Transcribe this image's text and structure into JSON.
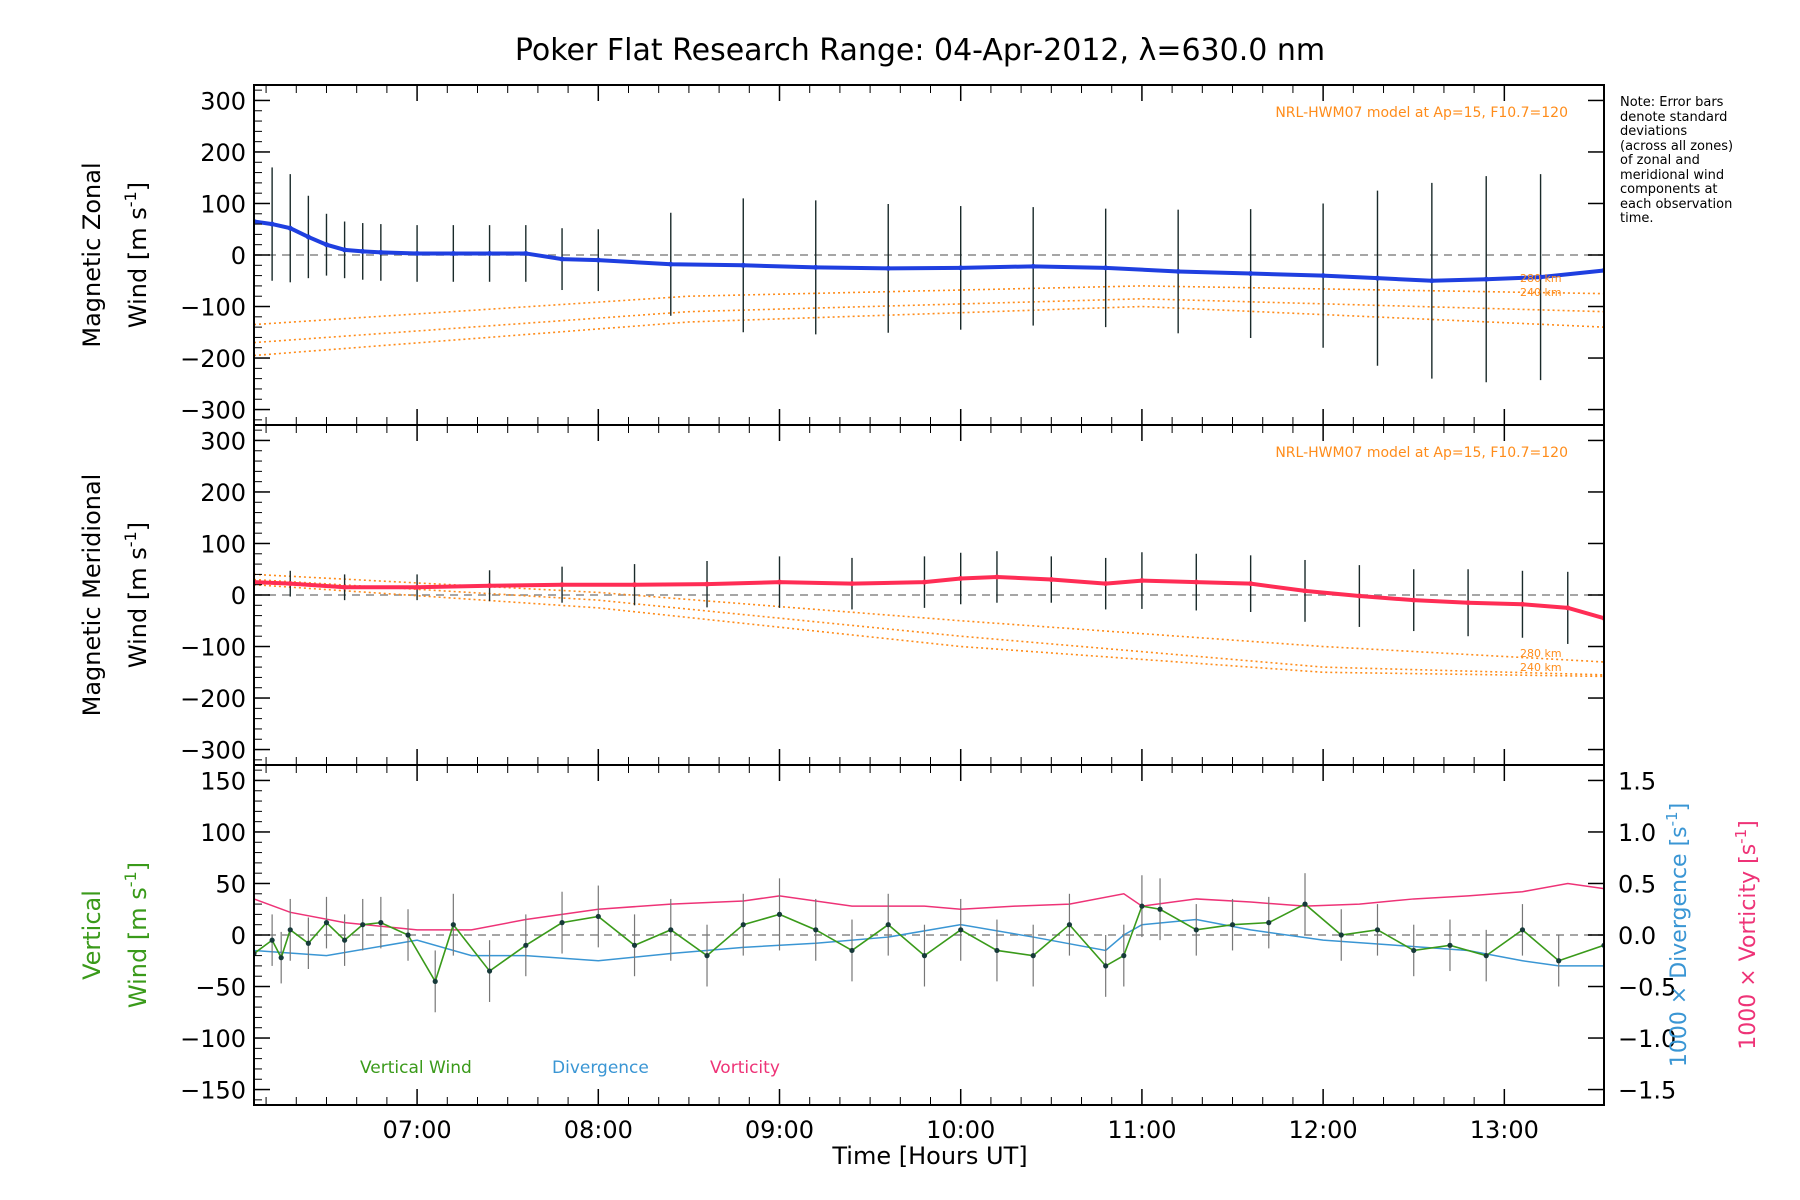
{
  "figure": {
    "title": "Poker Flat Research Range: 04-Apr-2012, λ=630.0 nm",
    "x_label": "Time [Hours UT]",
    "note_lines": [
      "Note: Error bars",
      "denote standard",
      "deviations",
      "(across all zones)",
      "of zonal and",
      "meridional wind",
      "components at",
      "each observation",
      "time."
    ],
    "colors": {
      "zonal": "#1f3fe0",
      "meridional": "#ff2d55",
      "model": "#ff8c1a",
      "vertical": "#3a9a1a",
      "divergence": "#3a96d4",
      "vorticity": "#ee3377",
      "errorbar": "#1a2a2a",
      "dash": "#888888"
    }
  },
  "chart_data": [
    {
      "id": "zonal",
      "type": "line",
      "ylabel_line1": "Magnetic Zonal",
      "ylabel_line2": "Wind [m s",
      "ylabel_sup": "-1",
      "ylabel_close": "]",
      "model_label": "NRL-HWM07 model at Ap=15, F10.7=120",
      "alt_labels": [
        "280 km",
        "240 km"
      ],
      "xlim": [
        6.1,
        13.55
      ],
      "ylim": [
        -330,
        330
      ],
      "yticks": [
        300,
        200,
        100,
        0,
        -100,
        -200,
        -300
      ],
      "xticks": [
        "07:00",
        "08:00",
        "09:00",
        "10:00",
        "11:00",
        "12:00",
        "13:00"
      ],
      "x": [
        6.1,
        6.2,
        6.3,
        6.4,
        6.5,
        6.6,
        6.7,
        6.8,
        7.0,
        7.2,
        7.4,
        7.6,
        7.8,
        8.0,
        8.4,
        8.8,
        9.2,
        9.6,
        10.0,
        10.4,
        10.8,
        11.2,
        11.6,
        12.0,
        12.3,
        12.6,
        12.9,
        13.2,
        13.55
      ],
      "y": [
        65,
        60,
        52,
        35,
        20,
        10,
        7,
        5,
        3,
        3,
        3,
        3,
        -8,
        -10,
        -18,
        -20,
        -24,
        -26,
        -25,
        -22,
        -25,
        -32,
        -36,
        -40,
        -45,
        -50,
        -47,
        -43,
        -30
      ],
      "errorbar_halfwidth": [
        110,
        110,
        105,
        80,
        60,
        55,
        55,
        55,
        55,
        55,
        55,
        55,
        60,
        60,
        100,
        130,
        130,
        125,
        120,
        115,
        115,
        120,
        125,
        140,
        170,
        190,
        200,
        200,
        200
      ],
      "model_curves": [
        {
          "x": [
            6.1,
            8.5,
            11.0,
            13.55
          ],
          "y": [
            -135,
            -80,
            -60,
            -75
          ]
        },
        {
          "x": [
            6.1,
            8.5,
            11.0,
            13.55
          ],
          "y": [
            -170,
            -110,
            -85,
            -110
          ]
        },
        {
          "x": [
            6.1,
            8.5,
            11.0,
            13.55
          ],
          "y": [
            -195,
            -130,
            -100,
            -140
          ]
        }
      ]
    },
    {
      "id": "meridional",
      "type": "line",
      "ylabel_line1": "Magnetic Meridional",
      "ylabel_line2": "Wind [m s",
      "ylabel_sup": "-1",
      "ylabel_close": "]",
      "model_label": "NRL-HWM07 model at Ap=15, F10.7=120",
      "alt_labels": [
        "280 km",
        "240 km"
      ],
      "xlim": [
        6.1,
        13.55
      ],
      "ylim": [
        -330,
        330
      ],
      "yticks": [
        300,
        200,
        100,
        0,
        -100,
        -200,
        -300
      ],
      "xticks": [
        "07:00",
        "08:00",
        "09:00",
        "10:00",
        "11:00",
        "12:00",
        "13:00"
      ],
      "x": [
        6.1,
        6.3,
        6.6,
        7.0,
        7.4,
        7.8,
        8.2,
        8.6,
        9.0,
        9.4,
        9.8,
        10.0,
        10.2,
        10.5,
        10.8,
        11.0,
        11.3,
        11.6,
        11.9,
        12.2,
        12.5,
        12.8,
        13.1,
        13.35,
        13.55
      ],
      "y": [
        25,
        22,
        15,
        15,
        18,
        20,
        20,
        21,
        25,
        22,
        25,
        32,
        35,
        30,
        22,
        28,
        25,
        22,
        8,
        -2,
        -10,
        -15,
        -18,
        -25,
        -45
      ],
      "errorbar_halfwidth": [
        25,
        25,
        25,
        25,
        30,
        35,
        40,
        45,
        50,
        50,
        50,
        50,
        50,
        45,
        50,
        55,
        55,
        55,
        60,
        60,
        60,
        65,
        65,
        70,
        75
      ],
      "model_curves": [
        {
          "x": [
            6.1,
            8.0,
            10.0,
            12.0,
            13.55
          ],
          "y": [
            40,
            5,
            -50,
            -100,
            -130
          ]
        },
        {
          "x": [
            6.1,
            8.0,
            10.0,
            12.0,
            13.55
          ],
          "y": [
            30,
            -10,
            -80,
            -140,
            -155
          ]
        },
        {
          "x": [
            6.1,
            8.0,
            10.0,
            12.0,
            13.55
          ],
          "y": [
            20,
            -25,
            -100,
            -150,
            -158
          ]
        }
      ]
    },
    {
      "id": "vertical",
      "type": "line",
      "ylabel_line1": "Vertical",
      "ylabel_line2": "Wind [m s",
      "ylabel_sup": "-1",
      "ylabel_close": "]",
      "y2label_div": "1000 × Divergence [s",
      "y2label_vort": "1000 × Vorticity [s",
      "y2label_sup": "-1",
      "y2label_close": "]",
      "xlim": [
        6.1,
        13.55
      ],
      "ylim": [
        -165,
        165
      ],
      "y2lim": [
        -1.65,
        1.65
      ],
      "yticks": [
        150,
        100,
        50,
        0,
        -50,
        -100,
        -150
      ],
      "y2ticks": [
        "1.5",
        "1.0",
        "0.5",
        "0.0",
        "−0.5",
        "−1.0",
        "−1.5"
      ],
      "y2tick_values": [
        1.5,
        1.0,
        0.5,
        0.0,
        -0.5,
        -1.0,
        -1.5
      ],
      "xticks": [
        "07:00",
        "08:00",
        "09:00",
        "10:00",
        "11:00",
        "12:00",
        "13:00"
      ],
      "legend": [
        "Vertical Wind",
        "Divergence",
        "Vorticity"
      ],
      "series": [
        {
          "name": "Vertical Wind",
          "x": [
            6.1,
            6.2,
            6.25,
            6.3,
            6.4,
            6.5,
            6.6,
            6.7,
            6.8,
            6.95,
            7.1,
            7.2,
            7.4,
            7.6,
            7.8,
            8.0,
            8.2,
            8.4,
            8.6,
            8.8,
            9.0,
            9.2,
            9.4,
            9.6,
            9.8,
            10.0,
            10.2,
            10.4,
            10.6,
            10.8,
            10.9,
            11.0,
            11.1,
            11.3,
            11.5,
            11.7,
            11.9,
            12.1,
            12.3,
            12.5,
            12.7,
            12.9,
            13.1,
            13.3,
            13.55
          ],
          "y": [
            -18,
            -5,
            -22,
            5,
            -8,
            12,
            -5,
            10,
            12,
            0,
            -45,
            10,
            -35,
            -10,
            12,
            18,
            -10,
            5,
            -20,
            10,
            20,
            5,
            -15,
            10,
            -20,
            5,
            -15,
            -20,
            10,
            -30,
            -20,
            28,
            25,
            5,
            10,
            12,
            30,
            0,
            5,
            -15,
            -10,
            -20,
            5,
            -25,
            -10
          ],
          "errorbar_halfwidth": [
            25,
            25,
            25,
            30,
            25,
            25,
            25,
            25,
            25,
            25,
            30,
            30,
            30,
            30,
            30,
            30,
            30,
            30,
            30,
            30,
            35,
            30,
            30,
            30,
            30,
            30,
            30,
            30,
            30,
            30,
            30,
            30,
            30,
            25,
            25,
            25,
            30,
            25,
            25,
            25,
            25,
            25,
            25,
            25,
            30
          ]
        },
        {
          "name": "Divergence",
          "x": [
            6.1,
            6.5,
            7.0,
            7.3,
            7.6,
            8.0,
            8.4,
            8.8,
            9.2,
            9.6,
            10.0,
            10.4,
            10.8,
            10.9,
            11.0,
            11.3,
            11.6,
            12.0,
            12.4,
            12.8,
            13.1,
            13.3,
            13.55
          ],
          "y": [
            -0.15,
            -0.2,
            -0.05,
            -0.2,
            -0.2,
            -0.25,
            -0.18,
            -0.12,
            -0.08,
            -0.02,
            0.1,
            -0.02,
            -0.15,
            0.0,
            0.1,
            0.15,
            0.05,
            -0.05,
            -0.1,
            -0.15,
            -0.25,
            -0.3,
            -0.3
          ]
        },
        {
          "name": "Vorticity",
          "x": [
            6.1,
            6.3,
            6.6,
            7.0,
            7.3,
            7.6,
            8.0,
            8.4,
            8.8,
            9.0,
            9.4,
            9.8,
            10.0,
            10.3,
            10.6,
            10.9,
            11.0,
            11.3,
            11.6,
            11.9,
            12.2,
            12.5,
            12.8,
            13.1,
            13.35,
            13.55
          ],
          "y": [
            0.35,
            0.22,
            0.12,
            0.05,
            0.05,
            0.15,
            0.25,
            0.3,
            0.33,
            0.38,
            0.28,
            0.28,
            0.25,
            0.28,
            0.3,
            0.4,
            0.28,
            0.35,
            0.32,
            0.28,
            0.3,
            0.35,
            0.38,
            0.42,
            0.5,
            0.45
          ]
        }
      ]
    }
  ]
}
